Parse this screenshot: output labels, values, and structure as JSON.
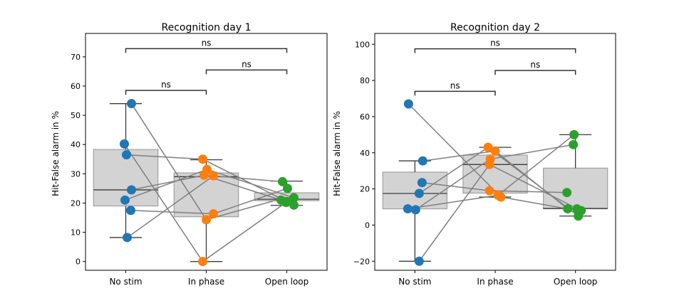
{
  "chart_data": [
    {
      "type": "box",
      "title": "Recognition day 1",
      "ylabel": "Hit-False alarm in %",
      "xlabel": "",
      "categories": [
        "No stim",
        "In phase",
        "Open loop"
      ],
      "ylim": [
        -3,
        78
      ],
      "yticks": [
        0,
        10,
        20,
        30,
        40,
        50,
        60,
        70
      ],
      "grid": false,
      "boxes": [
        {
          "category": "No stim",
          "q1": 19,
          "median": 24.5,
          "q3": 38.3,
          "whislo": 8.2,
          "whishi": 54
        },
        {
          "category": "In phase",
          "q1": 15.3,
          "median": 29,
          "q3": 30.3,
          "whislo": 0,
          "whishi": 34.8
        },
        {
          "category": "Open loop",
          "q1": 20.8,
          "median": 21.3,
          "q3": 23.5,
          "whislo": 19.2,
          "whishi": 27.5
        }
      ],
      "series": [
        {
          "name": "No stim",
          "color": "#1f77b4",
          "values": [
            54,
            40.2,
            36.5,
            24.5,
            21,
            17.5,
            8.2
          ]
        },
        {
          "name": "In phase",
          "color": "#ff7f0e",
          "values": [
            35,
            31.5,
            29.5,
            29.3,
            16.3,
            14.3,
            0
          ]
        },
        {
          "name": "Open loop",
          "color": "#2ca02c",
          "values": [
            27.3,
            25,
            21.8,
            21,
            20.5,
            20.2,
            19.3
          ]
        }
      ],
      "paired_lines": [
        [
          54,
          14.3,
          22
        ],
        [
          40.2,
          0,
          20.2
        ],
        [
          36.5,
          35,
          19.3
        ],
        [
          24.5,
          29.5,
          21
        ],
        [
          21,
          31.5,
          21.8
        ],
        [
          17.5,
          16.3,
          25
        ],
        [
          8.2,
          29.3,
          27.3
        ]
      ],
      "annotations": [
        {
          "from": "No stim",
          "to": "In phase",
          "y": 58.5,
          "text": "ns"
        },
        {
          "from": "In phase",
          "to": "Open loop",
          "y": 65.5,
          "text": "ns"
        },
        {
          "from": "No stim",
          "to": "Open loop",
          "y": 72.8,
          "text": "ns"
        }
      ]
    },
    {
      "type": "box",
      "title": "Recognition day 2",
      "ylabel": "Hit-False alarm in %",
      "xlabel": "",
      "categories": [
        "No stim",
        "In phase",
        "Open loop"
      ],
      "ylim": [
        -25,
        106
      ],
      "yticks": [
        -20,
        0,
        20,
        40,
        60,
        80,
        100
      ],
      "grid": false,
      "boxes": [
        {
          "category": "No stim",
          "q1": 9,
          "median": 17.5,
          "q3": 29.3,
          "whislo": -20,
          "whishi": 35.5
        },
        {
          "category": "In phase",
          "q1": 17.7,
          "median": 33.5,
          "q3": 38.7,
          "whislo": 15.5,
          "whishi": 43
        },
        {
          "category": "Open loop",
          "q1": 9,
          "median": 9.2,
          "q3": 31.5,
          "whislo": 5,
          "whishi": 50
        }
      ],
      "series": [
        {
          "name": "No stim",
          "color": "#1f77b4",
          "values": [
            67,
            35.5,
            23.5,
            17.5,
            9,
            8.5,
            -20
          ]
        },
        {
          "name": "In phase",
          "color": "#ff7f0e",
          "values": [
            43,
            41,
            36.5,
            33.5,
            19,
            16.5,
            15.5
          ]
        },
        {
          "name": "Open loop",
          "color": "#2ca02c",
          "values": [
            50,
            44.5,
            18,
            9,
            9,
            8,
            5
          ]
        }
      ],
      "paired_lines": [
        [
          67,
          15.5,
          9
        ],
        [
          35.5,
          41,
          9
        ],
        [
          23.5,
          19,
          18
        ],
        [
          17.5,
          43,
          5
        ],
        [
          9,
          16.5,
          50
        ],
        [
          8.5,
          36.5,
          44.5
        ],
        [
          -20,
          33.5,
          8
        ]
      ],
      "annotations": [
        {
          "from": "No stim",
          "to": "In phase",
          "y": 74,
          "text": "ns"
        },
        {
          "from": "In phase",
          "to": "Open loop",
          "y": 85.5,
          "text": "ns"
        },
        {
          "from": "No stim",
          "to": "Open loop",
          "y": 97.5,
          "text": "ns"
        }
      ]
    }
  ]
}
